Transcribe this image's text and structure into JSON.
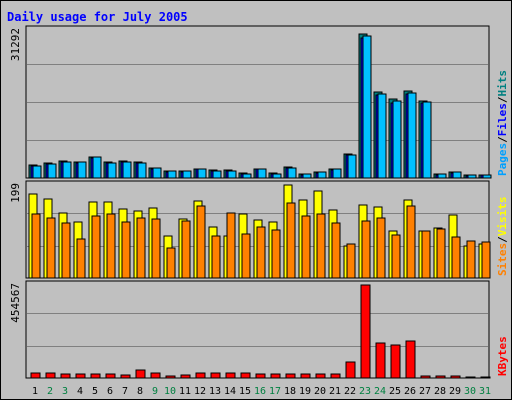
{
  "chart_data": {
    "type": "bar",
    "title": "Daily usage for July 2005",
    "categories": [
      "1",
      "2",
      "3",
      "4",
      "5",
      "6",
      "7",
      "8",
      "9",
      "10",
      "11",
      "12",
      "13",
      "14",
      "15",
      "16",
      "17",
      "18",
      "19",
      "20",
      "21",
      "22",
      "23",
      "24",
      "25",
      "26",
      "27",
      "28",
      "29",
      "30",
      "31"
    ],
    "weekend_days": [
      "2",
      "3",
      "9",
      "10",
      "16",
      "17",
      "23",
      "24",
      "30",
      "31"
    ],
    "panels": [
      {
        "id": "hits",
        "max_label": "31292",
        "max": 31292,
        "right_labels": [
          {
            "text": "Pages",
            "color": "#00a0ff"
          },
          {
            "text": "/",
            "color": "#000000"
          },
          {
            "text": "Files",
            "color": "#0000ff"
          },
          {
            "text": "/",
            "color": "#000000"
          },
          {
            "text": "Hits",
            "color": "#008080"
          }
        ],
        "series": [
          {
            "name": "Hits",
            "color": "#008080",
            "values": [
              2700,
              3100,
              3500,
              3400,
              4500,
              3300,
              3500,
              3300,
              2200,
              1500,
              1500,
              2000,
              1600,
              1600,
              1000,
              2000,
              1000,
              2300,
              900,
              1300,
              1900,
              5000,
              30500,
              18200,
              16600,
              18400,
              16300,
              900,
              1300,
              600,
              700
            ]
          },
          {
            "name": "Files",
            "color": "#0000ff",
            "values": [
              2500,
              2900,
              3300,
              3200,
              4300,
              3100,
              3300,
              3100,
              2000,
              1300,
              1300,
              1800,
              1400,
              1400,
              800,
              1800,
              800,
              2100,
              700,
              1100,
              1700,
              4800,
              29500,
              17500,
              15900,
              17700,
              15800,
              700,
              1100,
              500,
              600
            ]
          },
          {
            "name": "Pages",
            "color": "#00c0ff",
            "values": [
              2600,
              3000,
              3400,
              3300,
              4400,
              3200,
              3400,
              3200,
              2100,
              1400,
              1400,
              1900,
              1500,
              1500,
              900,
              1900,
              900,
              2200,
              800,
              1200,
              1800,
              4900,
              30000,
              17800,
              16200,
              18000,
              16100,
              800,
              1200,
              550,
              650
            ]
          }
        ]
      },
      {
        "id": "visits",
        "max_label": "199",
        "max": 199,
        "right_labels": [
          {
            "text": "Sites",
            "color": "#ff8000"
          },
          {
            "text": "/",
            "color": "#000000"
          },
          {
            "text": "Visits",
            "color": "#ffff00"
          }
        ],
        "series": [
          {
            "name": "Visits",
            "color": "#ffff00",
            "values": [
              180,
              168,
              140,
              120,
              162,
              162,
              147,
              143,
              150,
              90,
              126,
              165,
              110,
              90,
              137,
              125,
              120,
              199,
              166,
              186,
              146,
              68,
              156,
              151,
              100,
              167,
              100,
              108,
              135,
              68,
              73
            ]
          },
          {
            "name": "Sites",
            "color": "#ff8000",
            "values": [
              137,
              129,
              118,
              84,
              132,
              137,
              120,
              128,
              126,
              64,
              121,
              155,
              90,
              140,
              95,
              110,
              103,
              160,
              133,
              137,
              118,
              73,
              122,
              128,
              91,
              153,
              101,
              105,
              88,
              79,
              78
            ]
          }
        ]
      },
      {
        "id": "kbytes",
        "max_label": "454567",
        "max": 454567,
        "right_labels": [
          {
            "text": "KBytes",
            "color": "#ff0000"
          }
        ],
        "series": [
          {
            "name": "KBytes",
            "color": "#ff0000",
            "values": [
              25000,
              22000,
              20000,
              20000,
              20000,
              18000,
              17000,
              40000,
              22000,
              12000,
              13000,
              24000,
              26000,
              22000,
              22000,
              20000,
              20000,
              20000,
              20000,
              20000,
              20000,
              80000,
              454567,
              170000,
              162000,
              180000,
              10000,
              8000,
              10000,
              6000,
              6000
            ]
          }
        ]
      }
    ]
  }
}
